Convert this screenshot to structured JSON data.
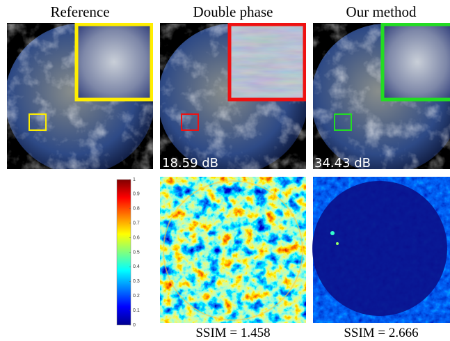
{
  "titles": [
    "Reference",
    "Double phase",
    "Our method"
  ],
  "psnr": [
    "18.59 dB",
    "34.43 dB"
  ],
  "ssim": [
    "SSIM = 1.458",
    "SSIM = 2.666"
  ],
  "colorbar": {
    "ticks": [
      0,
      0.1,
      0.2,
      0.3,
      0.4,
      0.5,
      0.6,
      0.7,
      0.8,
      0.9,
      1
    ]
  }
}
